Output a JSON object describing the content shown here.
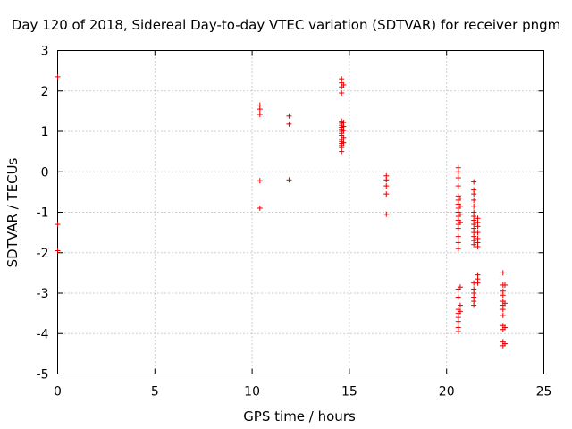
{
  "chart_data": {
    "type": "scatter",
    "title": "Day 120 of 2018, Sidereal Day-to-day VTEC variation (SDTVAR) for receiver pngm",
    "xlabel": "GPS time / hours",
    "ylabel": "SDTVAR / TECUs",
    "xlim": [
      0,
      25
    ],
    "ylim": [
      -5,
      3
    ],
    "xticks": [
      0,
      5,
      10,
      15,
      20,
      25
    ],
    "yticks": [
      -5,
      -4,
      -3,
      -2,
      -1,
      0,
      1,
      2,
      3
    ],
    "grid": true,
    "marker": "+",
    "color": "#e00000",
    "series": [
      {
        "name": "SDTVAR",
        "points": [
          [
            0.0,
            2.35
          ],
          [
            0.0,
            -1.3
          ],
          [
            0.0,
            -1.95
          ],
          [
            10.4,
            1.65
          ],
          [
            10.4,
            1.55
          ],
          [
            10.4,
            1.42
          ],
          [
            10.4,
            -0.22
          ],
          [
            10.4,
            -0.9
          ],
          [
            11.9,
            1.38
          ],
          [
            11.9,
            1.18
          ],
          [
            11.9,
            -0.2
          ],
          [
            14.6,
            2.3
          ],
          [
            14.6,
            2.2
          ],
          [
            14.6,
            2.1
          ],
          [
            14.6,
            1.95
          ],
          [
            14.6,
            1.25
          ],
          [
            14.6,
            1.2
          ],
          [
            14.6,
            1.15
          ],
          [
            14.6,
            1.1
          ],
          [
            14.6,
            1.05
          ],
          [
            14.6,
            1.0
          ],
          [
            14.6,
            0.95
          ],
          [
            14.6,
            0.9
          ],
          [
            14.6,
            0.8
          ],
          [
            14.6,
            0.75
          ],
          [
            14.6,
            0.7
          ],
          [
            14.6,
            0.65
          ],
          [
            14.6,
            0.6
          ],
          [
            14.6,
            0.5
          ],
          [
            14.7,
            2.15
          ],
          [
            14.7,
            1.22
          ],
          [
            14.7,
            1.12
          ],
          [
            14.7,
            1.02
          ],
          [
            14.7,
            0.85
          ],
          [
            14.7,
            0.72
          ],
          [
            16.9,
            -0.1
          ],
          [
            16.9,
            -0.2
          ],
          [
            16.9,
            -0.35
          ],
          [
            16.9,
            -0.55
          ],
          [
            16.9,
            -1.05
          ],
          [
            20.6,
            0.1
          ],
          [
            20.6,
            0.0
          ],
          [
            20.6,
            -0.15
          ],
          [
            20.6,
            -0.35
          ],
          [
            20.6,
            -0.6
          ],
          [
            20.6,
            -0.7
          ],
          [
            20.6,
            -0.8
          ],
          [
            20.6,
            -0.9
          ],
          [
            20.6,
            -1.0
          ],
          [
            20.6,
            -1.1
          ],
          [
            20.6,
            -1.2
          ],
          [
            20.6,
            -1.3
          ],
          [
            20.6,
            -1.4
          ],
          [
            20.6,
            -1.6
          ],
          [
            20.6,
            -1.75
          ],
          [
            20.6,
            -1.9
          ],
          [
            20.7,
            -0.65
          ],
          [
            20.7,
            -0.85
          ],
          [
            20.7,
            -1.05
          ],
          [
            20.7,
            -1.25
          ],
          [
            20.6,
            -2.9
          ],
          [
            20.6,
            -3.1
          ],
          [
            20.6,
            -3.4
          ],
          [
            20.6,
            -3.5
          ],
          [
            20.6,
            -3.6
          ],
          [
            20.6,
            -3.7
          ],
          [
            20.6,
            -3.85
          ],
          [
            20.6,
            -3.95
          ],
          [
            20.7,
            -2.85
          ],
          [
            20.7,
            -3.3
          ],
          [
            20.7,
            -3.45
          ],
          [
            21.4,
            -0.25
          ],
          [
            21.4,
            -0.45
          ],
          [
            21.4,
            -0.55
          ],
          [
            21.4,
            -0.7
          ],
          [
            21.4,
            -0.85
          ],
          [
            21.4,
            -1.0
          ],
          [
            21.4,
            -1.1
          ],
          [
            21.4,
            -1.2
          ],
          [
            21.4,
            -1.3
          ],
          [
            21.4,
            -1.4
          ],
          [
            21.4,
            -1.5
          ],
          [
            21.4,
            -1.6
          ],
          [
            21.4,
            -1.7
          ],
          [
            21.4,
            -1.8
          ],
          [
            21.6,
            -1.15
          ],
          [
            21.6,
            -1.25
          ],
          [
            21.6,
            -1.35
          ],
          [
            21.6,
            -1.5
          ],
          [
            21.6,
            -1.65
          ],
          [
            21.6,
            -1.75
          ],
          [
            21.6,
            -1.85
          ],
          [
            21.4,
            -2.75
          ],
          [
            21.4,
            -2.9
          ],
          [
            21.4,
            -3.0
          ],
          [
            21.4,
            -3.1
          ],
          [
            21.4,
            -3.2
          ],
          [
            21.4,
            -3.3
          ],
          [
            21.6,
            -2.55
          ],
          [
            21.6,
            -2.65
          ],
          [
            21.6,
            -2.75
          ],
          [
            22.9,
            -2.5
          ],
          [
            22.9,
            -2.8
          ],
          [
            22.9,
            -2.95
          ],
          [
            22.9,
            -3.05
          ],
          [
            22.9,
            -3.2
          ],
          [
            22.9,
            -3.3
          ],
          [
            22.9,
            -3.4
          ],
          [
            22.9,
            -3.55
          ],
          [
            22.9,
            -3.8
          ],
          [
            22.9,
            -3.9
          ],
          [
            22.9,
            -4.2
          ],
          [
            22.9,
            -4.3
          ],
          [
            23.0,
            -2.8
          ],
          [
            23.0,
            -3.25
          ],
          [
            23.0,
            -3.85
          ],
          [
            23.0,
            -4.25
          ]
        ]
      }
    ]
  }
}
